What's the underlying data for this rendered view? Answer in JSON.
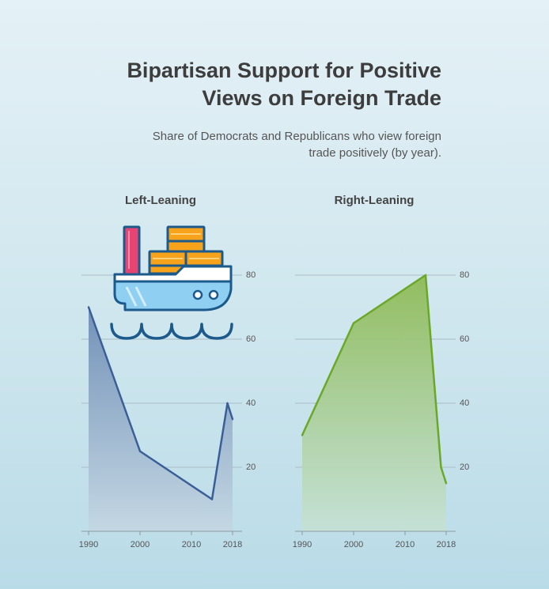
{
  "header": {
    "title_line1": "Bipartisan Support for Positive",
    "title_line2": "Views on Foreign Trade",
    "subtitle_line1": "Share of Democrats and Republicans who view foreign",
    "subtitle_line2": "trade positively (by year)."
  },
  "icon": "cargo-ship-icon",
  "colors": {
    "left_line": "#3a5f98",
    "left_fill_top": "#6e8db5",
    "left_fill_bottom": "#c4d7e3",
    "right_line": "#6aa829",
    "right_fill_top": "#8fbb58",
    "right_fill_bottom": "#c5e1d6",
    "grid": "#a8bcc6"
  },
  "chart_data": [
    {
      "type": "area",
      "title": "Left-Leaning",
      "x": [
        1990,
        2000,
        2014,
        2017,
        2018
      ],
      "y": [
        70,
        25,
        10,
        40,
        35
      ],
      "xticks": [
        "1990",
        "2000",
        "2010",
        "2018"
      ],
      "yticks": [
        "20",
        "40",
        "60",
        "80"
      ],
      "xlim": [
        1990,
        2018
      ],
      "ylim": [
        0,
        80
      ],
      "grid": true
    },
    {
      "type": "area",
      "title": "Right-Leaning",
      "x": [
        1990,
        2000,
        2014,
        2017,
        2018
      ],
      "y": [
        30,
        65,
        80,
        20,
        15
      ],
      "xticks": [
        "1990",
        "2000",
        "2010",
        "2018"
      ],
      "yticks": [
        "20",
        "40",
        "60",
        "80"
      ],
      "xlim": [
        1990,
        2018
      ],
      "ylim": [
        0,
        80
      ],
      "grid": true
    }
  ]
}
